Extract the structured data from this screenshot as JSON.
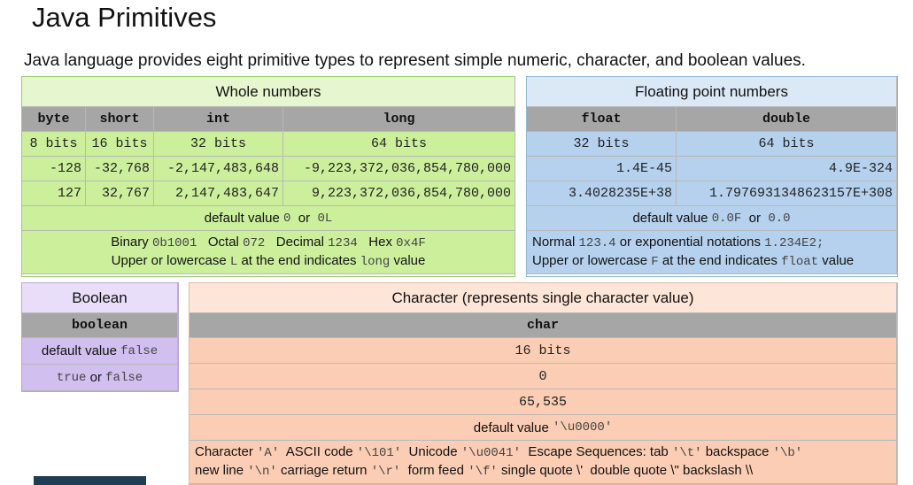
{
  "title": "Java Primitives",
  "subtitle": "Java language provides eight primitive types to represent simple numeric, character, and boolean values.",
  "whole": {
    "header": "Whole numbers",
    "columns": [
      "byte",
      "short",
      "int",
      "long"
    ],
    "bits": [
      "8 bits",
      "16 bits",
      "32 bits",
      "64 bits"
    ],
    "min": [
      "-128",
      "-32,768",
      "-2,147,483,648",
      "-9,223,372,036,854,780,000"
    ],
    "max": [
      "127",
      "32,767",
      "2,147,483,647",
      "9,223,372,036,854,780,000"
    ],
    "default": {
      "label": "default value",
      "v1": "0",
      "or": "or",
      "v2": "0L"
    },
    "notes": {
      "binary_label": "Binary",
      "binary": "0b1001",
      "octal_label": "Octal",
      "octal": "072",
      "decimal_label": "Decimal",
      "decimal": "1234",
      "hex_label": "Hex",
      "hex": "0x4F",
      "line2_a": "Upper or lowercase",
      "line2_code": "L",
      "line2_b": "at the end indicates",
      "line2_type": "long",
      "line2_c": "value"
    }
  },
  "floating": {
    "header": "Floating point numbers",
    "columns": [
      "float",
      "double"
    ],
    "bits": [
      "32 bits",
      "64 bits"
    ],
    "min": [
      "1.4E-45",
      "4.9E-324"
    ],
    "max": [
      "3.4028235E+38",
      "1.7976931348623157E+308"
    ],
    "default": {
      "label": "default value",
      "v1": "0.0F",
      "or": "or",
      "v2": "0.0"
    },
    "notes": {
      "line1_a": "Normal",
      "line1_code": "123.4",
      "line1_b": "or exponential notations",
      "line1_code2": "1.234E2;",
      "line2_a": "Upper or lowercase",
      "line2_code": "F",
      "line2_b": "at the end indicates",
      "line2_type": "float",
      "line2_c": "value"
    }
  },
  "boolean": {
    "header": "Boolean",
    "column": "boolean",
    "default": {
      "label": "default value",
      "v": "false"
    },
    "values": {
      "v1": "true",
      "or": "or",
      "v2": "false"
    }
  },
  "character": {
    "header": "Character (represents single character value)",
    "column": "char",
    "bits": "16 bits",
    "min": "0",
    "max": "65,535",
    "default": {
      "label": "default value",
      "v": "'\\u0000'"
    },
    "notes": {
      "l1": [
        {
          "t": "Character ",
          "c": false
        },
        {
          "t": "'A'",
          "c": true
        },
        {
          "t": "  ASCII code ",
          "c": false
        },
        {
          "t": "'\\101'",
          "c": true
        },
        {
          "t": "  Unicode ",
          "c": false
        },
        {
          "t": "'\\u0041'",
          "c": true
        },
        {
          "t": "  Escape Sequences: tab ",
          "c": false
        },
        {
          "t": "'\\t'",
          "c": true
        },
        {
          "t": " backspace ",
          "c": false
        },
        {
          "t": "'\\b'",
          "c": true
        }
      ],
      "l2": [
        {
          "t": "new line ",
          "c": false
        },
        {
          "t": "'\\n'",
          "c": true
        },
        {
          "t": " carriage return ",
          "c": false
        },
        {
          "t": "'\\r'",
          "c": true
        },
        {
          "t": "  form feed ",
          "c": false
        },
        {
          "t": "'\\f'",
          "c": true
        },
        {
          "t": " single quote ",
          "c": false
        },
        {
          "t": "\\'",
          "c": false
        },
        {
          "t": "  double quote ",
          "c": false
        },
        {
          "t": "\\\"",
          "c": false
        },
        {
          "t": " backslash ",
          "c": false
        },
        {
          "t": "\\\\",
          "c": false
        }
      ]
    }
  }
}
